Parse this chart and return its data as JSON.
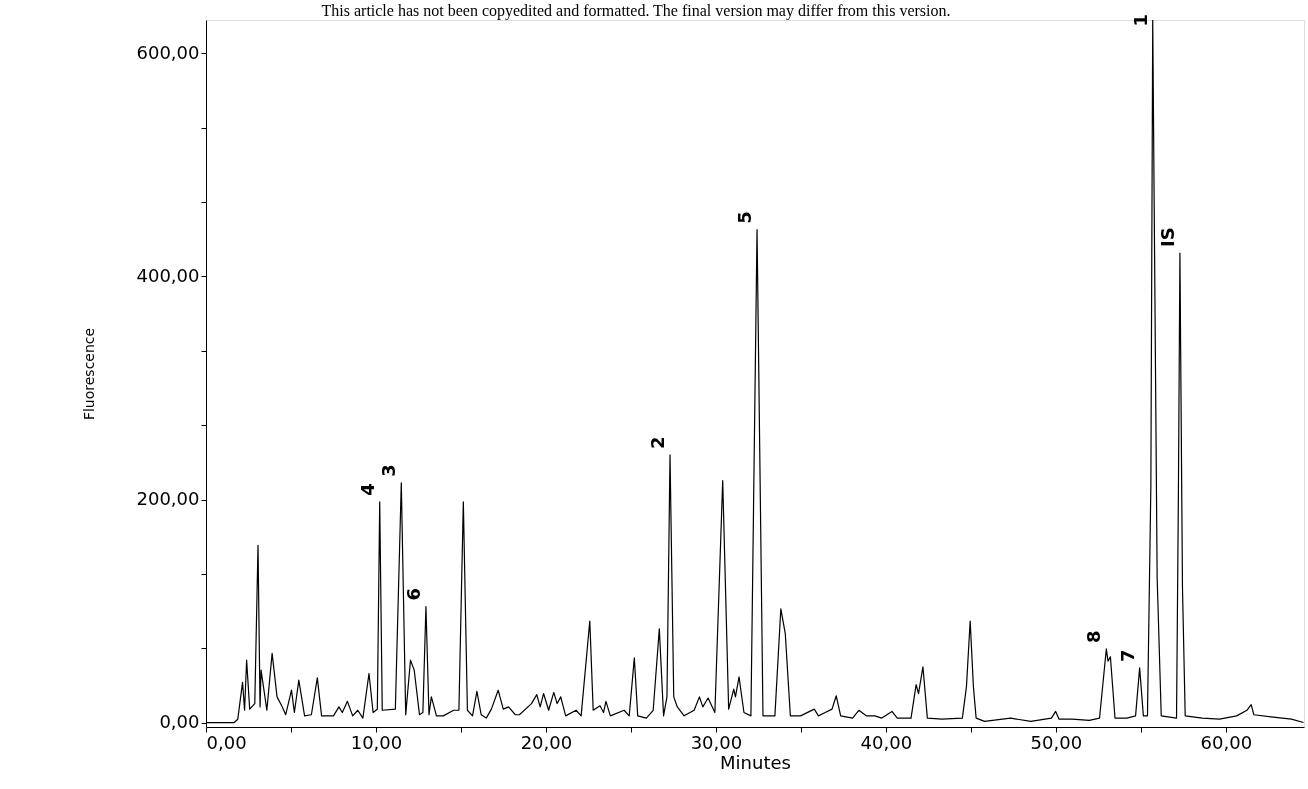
{
  "chart_data": {
    "type": "line",
    "xlabel": "Minutes",
    "ylabel": "Fluorescence",
    "annotations": [
      "This article has not been copyedited and formatted. The final version may differ from this version.",
      {
        "text": "4",
        "x": 10.22,
        "y": 198
      },
      {
        "text": "3",
        "x": 11.49,
        "y": 215
      },
      {
        "text": "6",
        "x": 12.94,
        "y": 104
      },
      {
        "text": "2",
        "x": 27.3,
        "y": 240
      },
      {
        "text": "5",
        "x": 32.42,
        "y": 442
      },
      {
        "text": "8",
        "x": 52.97,
        "y": 66
      },
      {
        "text": "7",
        "x": 54.93,
        "y": 49
      },
      {
        "text": "1",
        "x": 55.7,
        "y": 630
      },
      {
        "text": "IS",
        "x": 57.3,
        "y": 421
      }
    ],
    "x": [
      0,
      1.66,
      1.87,
      2.15,
      2.27,
      2.39,
      2.57,
      2.87,
      3.06,
      3.18,
      3.24,
      3.58,
      3.89,
      4.18,
      4.49,
      4.69,
      5.03,
      5.2,
      5.46,
      5.8,
      6.2,
      6.55,
      6.8,
      7.5,
      7.82,
      8.02,
      8.32,
      8.63,
      8.93,
      9.23,
      9.59,
      9.83,
      10.08,
      10.22,
      10.37,
      11.14,
      11.49,
      11.75,
      12.03,
      12.25,
      12.56,
      12.76,
      12.94,
      13.12,
      13.26,
      13.56,
      13.96,
      14.57,
      14.88,
      15.14,
      15.38,
      15.68,
      15.94,
      16.19,
      16.49,
      16.79,
      17.19,
      17.49,
      17.8,
      18.2,
      18.44,
      19.15,
      19.46,
      19.66,
      19.86,
      20.16,
      20.46,
      20.66,
      20.87,
      21.16,
      21.77,
      22.07,
      22.58,
      22.78,
      23.18,
      23.39,
      23.53,
      23.79,
      24.6,
      24.9,
      25.2,
      25.4,
      25.91,
      26.31,
      26.67,
      26.92,
      27.12,
      27.3,
      27.52,
      27.73,
      28.13,
      28.72,
      29.03,
      29.23,
      29.54,
      29.94,
      30.4,
      30.75,
      31.05,
      31.15,
      31.36,
      31.65,
      32.06,
      32.42,
      32.77,
      33.47,
      33.82,
      34.08,
      34.38,
      34.98,
      35.79,
      36.03,
      36.43,
      36.83,
      37.08,
      37.34,
      38.04,
      38.41,
      38.85,
      39.35,
      39.76,
      40.36,
      40.67,
      41.48,
      41.78,
      41.92,
      42.18,
      42.44,
      43.29,
      44.5,
      44.74,
      44.96,
      45.15,
      45.31,
      45.81,
      47.33,
      48.53,
      49.74,
      49.99,
      50.19,
      50.96,
      51.97,
      52.57,
      52.97,
      53.07,
      53.21,
      53.48,
      54.18,
      54.69,
      54.93,
      55.15,
      55.39,
      55.59,
      55.7,
      55.96,
      56.2,
      57.1,
      57.21,
      57.3,
      57.45,
      57.61,
      58.62,
      59.63,
      60.64,
      61.24,
      61.49,
      61.65,
      62.66,
      63.86,
      64.57
    ],
    "series": [
      {
        "color": "#000000",
        "values": [
          0,
          0,
          3,
          36,
          11,
          56,
          12,
          17,
          159,
          14,
          47,
          11,
          62,
          23,
          14,
          7,
          29,
          9,
          38,
          6,
          7,
          40,
          6,
          6,
          14,
          9,
          19,
          6,
          11,
          4,
          44,
          9,
          12,
          198,
          11,
          12,
          215,
          7,
          56,
          47,
          7,
          9,
          104,
          7,
          23,
          6,
          6,
          11,
          11,
          198,
          11,
          6,
          28,
          7,
          4,
          12,
          29,
          12,
          14,
          7,
          7,
          17,
          25,
          14,
          26,
          11,
          27,
          17,
          23,
          6,
          11,
          6,
          91,
          11,
          15,
          9,
          19,
          6,
          11,
          6,
          58,
          6,
          4,
          11,
          84,
          6,
          23,
          240,
          23,
          14,
          6,
          11,
          23,
          14,
          22,
          9,
          217,
          12,
          30,
          23,
          41,
          9,
          6,
          442,
          6,
          6,
          102,
          80,
          6,
          6,
          12,
          6,
          9,
          12,
          24,
          6,
          4,
          11,
          6,
          6,
          4,
          10,
          4,
          4,
          34,
          26,
          50,
          4,
          3,
          4,
          32,
          91,
          32,
          4,
          1,
          4,
          1,
          4,
          10,
          3,
          3,
          2,
          4,
          66,
          55,
          59,
          4,
          4,
          6,
          49,
          6,
          6,
          212,
          630,
          130,
          6,
          4,
          204,
          421,
          121,
          6,
          4,
          3,
          6,
          11,
          16,
          7,
          5,
          3,
          0
        ]
      }
    ],
    "xlim": [
      0,
      64.6
    ],
    "ylim": [
      -4,
      630
    ],
    "xticks": [
      {
        "value": 0,
        "label": "0,00"
      },
      {
        "value": 5,
        "label": null
      },
      {
        "value": 10,
        "label": "10,00"
      },
      {
        "value": 15,
        "label": null
      },
      {
        "value": 20,
        "label": "20,00"
      },
      {
        "value": 25,
        "label": null
      },
      {
        "value": 30,
        "label": "30,00"
      },
      {
        "value": 35,
        "label": null
      },
      {
        "value": 40,
        "label": "40,00"
      },
      {
        "value": 45,
        "label": null
      },
      {
        "value": 50,
        "label": "50,00"
      },
      {
        "value": 55,
        "label": null
      },
      {
        "value": 60,
        "label": "60,00"
      }
    ],
    "yticks": [
      {
        "value": 0,
        "label": "0,00"
      },
      {
        "value": 66.7,
        "label": null
      },
      {
        "value": 133.3,
        "label": null
      },
      {
        "value": 200,
        "label": "200,00"
      },
      {
        "value": 266.7,
        "label": null
      },
      {
        "value": 333.3,
        "label": null
      },
      {
        "value": 400,
        "label": "400,00"
      },
      {
        "value": 466.7,
        "label": null
      },
      {
        "value": 533.3,
        "label": null
      },
      {
        "value": 600,
        "label": "600,00"
      }
    ],
    "grid": false,
    "marker": "none",
    "line_style": "solid"
  }
}
